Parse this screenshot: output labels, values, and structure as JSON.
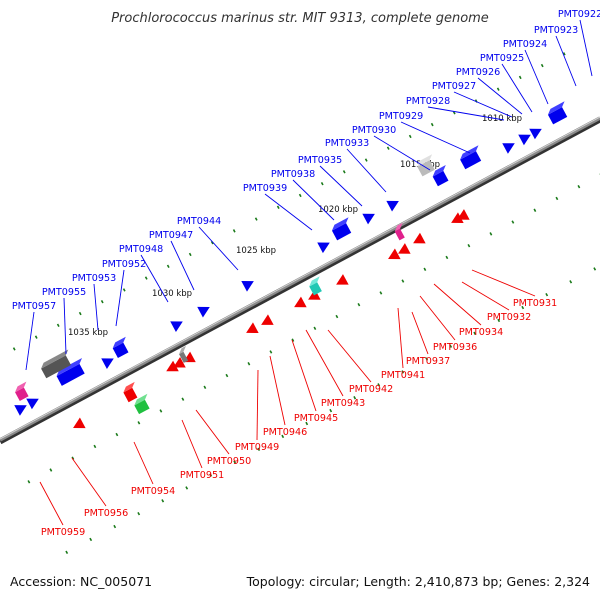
{
  "title": "Prochlorococcus marinus str. MIT 9313, complete genome",
  "footer": {
    "accession": "Accession: NC_005071",
    "summary": "Topology: circular; Length: 2,410,873 bp; Genes: 2,324"
  },
  "colors": {
    "forward": "#0000ee",
    "reverse": "#ee0000",
    "pink": "#e0208c",
    "cyan": "#20c8b4",
    "green": "#20c040",
    "gray_dark": "#555555",
    "gray_light": "#bbbbbb",
    "tick_green": "#1a7a1a"
  },
  "ticks": [
    "1035 kbp",
    "1030 kbp",
    "1025 kbp",
    "1020 kbp",
    "1015 kbp",
    "1010 kbp"
  ],
  "genes_forward": [
    "PMT0922",
    "PMT0923",
    "PMT0924",
    "PMT0925",
    "PMT0926",
    "PMT0927",
    "PMT0928",
    "PMT0929",
    "PMT0930",
    "PMT0933",
    "PMT0935",
    "PMT0938",
    "PMT0939",
    "PMT0944",
    "PMT0947",
    "PMT0948",
    "PMT0952",
    "PMT0953",
    "PMT0955",
    "PMT0957"
  ],
  "genes_reverse": [
    "PMT0931",
    "PMT0932",
    "PMT0934",
    "PMT0936",
    "PMT0937",
    "PMT0941",
    "PMT0942",
    "PMT0943",
    "PMT0945",
    "PMT0946",
    "PMT0949",
    "PMT0950",
    "PMT0951",
    "PMT0954",
    "PMT0956",
    "PMT0959"
  ]
}
